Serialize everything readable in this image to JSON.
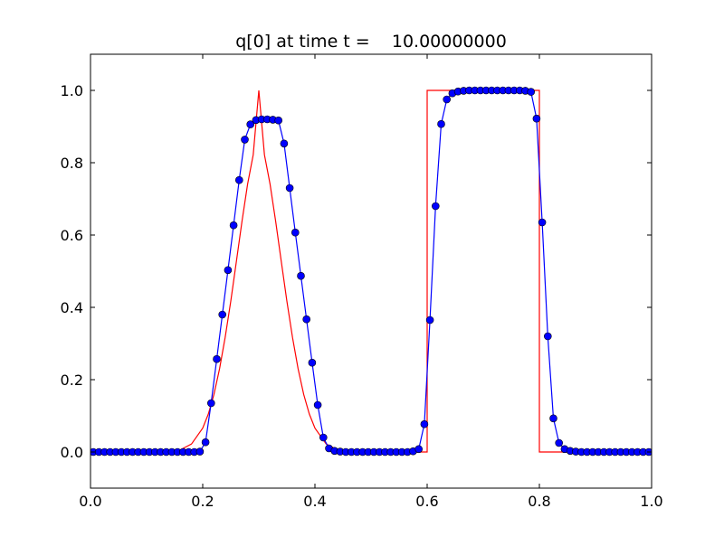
{
  "chart_data": {
    "type": "line",
    "title": "q[0] at time t =    10.00000000",
    "xlabel": "",
    "ylabel": "",
    "xlim": [
      0.0,
      1.0
    ],
    "ylim": [
      -0.1,
      1.1
    ],
    "x_ticks": [
      "0.0",
      "0.2",
      "0.4",
      "0.6",
      "0.8",
      "1.0"
    ],
    "y_ticks": [
      "0.0",
      "0.2",
      "0.4",
      "0.6",
      "0.8",
      "1.0"
    ],
    "grid": false,
    "legend": "none",
    "series": [
      {
        "color": "#ff0000",
        "style": "line",
        "x": [
          0.0,
          0.14,
          0.16,
          0.18,
          0.2,
          0.21,
          0.22,
          0.23,
          0.24,
          0.25,
          0.26,
          0.27,
          0.28,
          0.29,
          0.3,
          0.31,
          0.32,
          0.33,
          0.34,
          0.35,
          0.36,
          0.37,
          0.38,
          0.39,
          0.4,
          0.42,
          0.44,
          0.46,
          0.6,
          0.6,
          0.8,
          0.8,
          1.0
        ],
        "y": [
          0.0,
          0.0,
          0.006,
          0.022,
          0.066,
          0.105,
          0.159,
          0.23,
          0.317,
          0.417,
          0.527,
          0.638,
          0.741,
          0.822,
          1.0,
          0.822,
          0.741,
          0.638,
          0.527,
          0.417,
          0.317,
          0.23,
          0.159,
          0.105,
          0.066,
          0.022,
          0.006,
          0.0,
          0.0,
          1.0,
          1.0,
          0.0,
          0.0
        ]
      },
      {
        "color": "#0000ff",
        "style": "line-markers",
        "x": [
          0.005,
          0.015,
          0.025,
          0.035,
          0.045,
          0.055,
          0.065,
          0.075,
          0.085,
          0.095,
          0.105,
          0.115,
          0.125,
          0.135,
          0.145,
          0.155,
          0.165,
          0.175,
          0.185,
          0.195,
          0.205,
          0.215,
          0.225,
          0.235,
          0.245,
          0.255,
          0.265,
          0.275,
          0.285,
          0.295,
          0.305,
          0.315,
          0.325,
          0.335,
          0.345,
          0.355,
          0.365,
          0.375,
          0.385,
          0.395,
          0.405,
          0.415,
          0.425,
          0.435,
          0.445,
          0.455,
          0.465,
          0.475,
          0.485,
          0.495,
          0.505,
          0.515,
          0.525,
          0.535,
          0.545,
          0.555,
          0.565,
          0.575,
          0.585,
          0.595,
          0.605,
          0.615,
          0.625,
          0.635,
          0.645,
          0.655,
          0.665,
          0.675,
          0.685,
          0.695,
          0.705,
          0.715,
          0.725,
          0.735,
          0.745,
          0.755,
          0.765,
          0.775,
          0.785,
          0.795,
          0.805,
          0.815,
          0.825,
          0.835,
          0.845,
          0.855,
          0.865,
          0.875,
          0.885,
          0.895,
          0.905,
          0.915,
          0.925,
          0.935,
          0.945,
          0.955,
          0.965,
          0.975,
          0.985,
          0.995
        ],
        "y": [
          0.0,
          0.0,
          0.0,
          0.0,
          0.0,
          0.0,
          0.0,
          0.0,
          0.0,
          0.0,
          0.0,
          0.0,
          0.0,
          0.0,
          0.0,
          0.0,
          0.0,
          0.0,
          0.0,
          0.001,
          0.027,
          0.135,
          0.257,
          0.38,
          0.503,
          0.627,
          0.752,
          0.864,
          0.906,
          0.918,
          0.92,
          0.92,
          0.919,
          0.917,
          0.853,
          0.73,
          0.607,
          0.487,
          0.367,
          0.247,
          0.13,
          0.04,
          0.01,
          0.003,
          0.001,
          0.0,
          0.0,
          0.0,
          0.0,
          0.0,
          0.0,
          0.0,
          0.0,
          0.0,
          0.0,
          0.0,
          0.0,
          0.002,
          0.008,
          0.077,
          0.365,
          0.68,
          0.907,
          0.975,
          0.992,
          0.997,
          0.999,
          1.0,
          1.0,
          1.0,
          1.0,
          1.0,
          1.0,
          1.0,
          1.0,
          1.0,
          1.0,
          0.999,
          0.996,
          0.922,
          0.635,
          0.32,
          0.093,
          0.025,
          0.008,
          0.003,
          0.001,
          0.0,
          0.0,
          0.0,
          0.0,
          0.0,
          0.0,
          0.0,
          0.0,
          0.0,
          0.0,
          0.0,
          0.0,
          0.0
        ]
      }
    ]
  }
}
